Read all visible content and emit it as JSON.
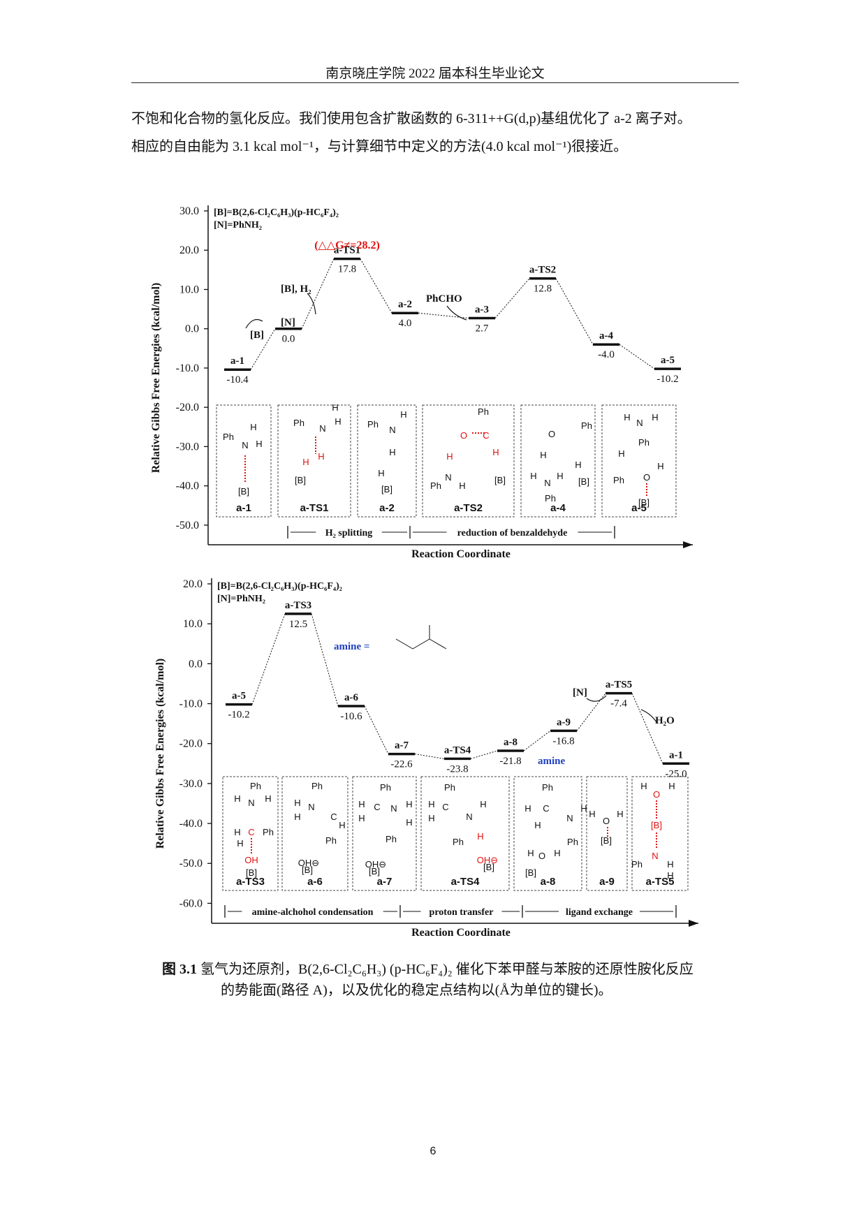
{
  "header": "南京晓庄学院 2022 届本科生毕业论文",
  "paragraph": {
    "line1": "不饱和化合物的氢化反应。我们使用包含扩散函数的 6-311++G(d,p)基组优化了 a-2 离子对。",
    "line2": "相应的自由能为 3.1 kcal mol⁻¹，与计算细节中定义的方法(4.0 kcal mol⁻¹)很接近。"
  },
  "chart_data": [
    {
      "type": "line",
      "ylabel": "Relative Gibbs Free Energies (kcal/mol)",
      "xlabel": "Reaction Coordinate",
      "ylim": [
        -55,
        30
      ],
      "yticks": [
        "30.0",
        "20.0",
        "10.0",
        "0.0",
        "-10.0",
        "-20.0",
        "-30.0",
        "-40.0",
        "-50.0"
      ],
      "legend_lines": [
        "[B]=B(2,6-Cl₂C₆H₃)(p-HC₆F₄)₂",
        "[N]=PhNH₂"
      ],
      "annotation": "(△△G≠=28.2)",
      "reagents": [
        "[B]",
        "[N]",
        "[B], H₂",
        "PhCHO"
      ],
      "points": [
        {
          "name": "a-1",
          "value": -10.4,
          "label": "-10.4"
        },
        {
          "name": "",
          "value": 0.0,
          "label": "0.0"
        },
        {
          "name": "a-TS1",
          "value": 17.8,
          "label": "17.8"
        },
        {
          "name": "a-2",
          "value": 4.0,
          "label": "4.0"
        },
        {
          "name": "a-3",
          "value": 2.7,
          "label": "2.7"
        },
        {
          "name": "a-TS2",
          "value": 12.8,
          "label": "12.8"
        },
        {
          "name": "a-4",
          "value": -4.0,
          "label": "-4.0"
        },
        {
          "name": "a-5",
          "value": -10.2,
          "label": "-10.2"
        }
      ],
      "structures": [
        "a-1",
        "a-TS1",
        "a-2",
        "a-TS2",
        "a-4",
        "a-5"
      ],
      "stages": [
        "H₂ splitting",
        "reduction of benzaldehyde"
      ]
    },
    {
      "type": "line",
      "ylabel": "Relative Gibbs Free Energies (kcal/mol)",
      "xlabel": "Reaction Coordinate",
      "ylim": [
        -65,
        20
      ],
      "yticks": [
        "20.0",
        "10.0",
        "0.0",
        "-10.0",
        "-20.0",
        "-30.0",
        "-40.0",
        "-50.0",
        "-60.0"
      ],
      "legend_lines": [
        "[B]=B(2,6-Cl₂C₆H₃)(p-HC₆F₄)₂",
        "[N]=PhNH₂"
      ],
      "amine_label": "amine =",
      "reagents": [
        "[N]",
        "H₂O",
        "amine"
      ],
      "points": [
        {
          "name": "a-5",
          "value": -10.2,
          "label": "-10.2"
        },
        {
          "name": "a-TS3",
          "value": 12.5,
          "label": "12.5"
        },
        {
          "name": "a-6",
          "value": -10.6,
          "label": "-10.6"
        },
        {
          "name": "a-7",
          "value": -22.6,
          "label": "-22.6"
        },
        {
          "name": "a-TS4",
          "value": -23.8,
          "label": "-23.8"
        },
        {
          "name": "a-8",
          "value": -21.8,
          "label": "-21.8"
        },
        {
          "name": "a-9",
          "value": -16.8,
          "label": "-16.8"
        },
        {
          "name": "a-TS5",
          "value": -7.4,
          "label": "-7.4"
        },
        {
          "name": "a-1",
          "value": -25.0,
          "label": "-25.0"
        }
      ],
      "structures": [
        "a-TS3",
        "a-6",
        "a-7",
        "a-TS4",
        "a-8",
        "a-9",
        "a-TS5"
      ],
      "stages": [
        "amine-alchohol condensation",
        "proton transfer",
        "ligand exchange"
      ]
    }
  ],
  "caption": {
    "label": "图 3.1",
    "line1": "氢气为还原剂，B(2,6-Cl₂C₆H₃) (p-HC₆F₄)₂ 催化下苯甲醛与苯胺的还原性胺化反应",
    "line2": "的势能面(路径 A)，以及优化的稳定点结构以(Å为单位的键长)。"
  },
  "page_number": "6",
  "colors": {
    "highlight": "#e01010",
    "amine": "#1f3fbf",
    "ink": "#111111"
  }
}
